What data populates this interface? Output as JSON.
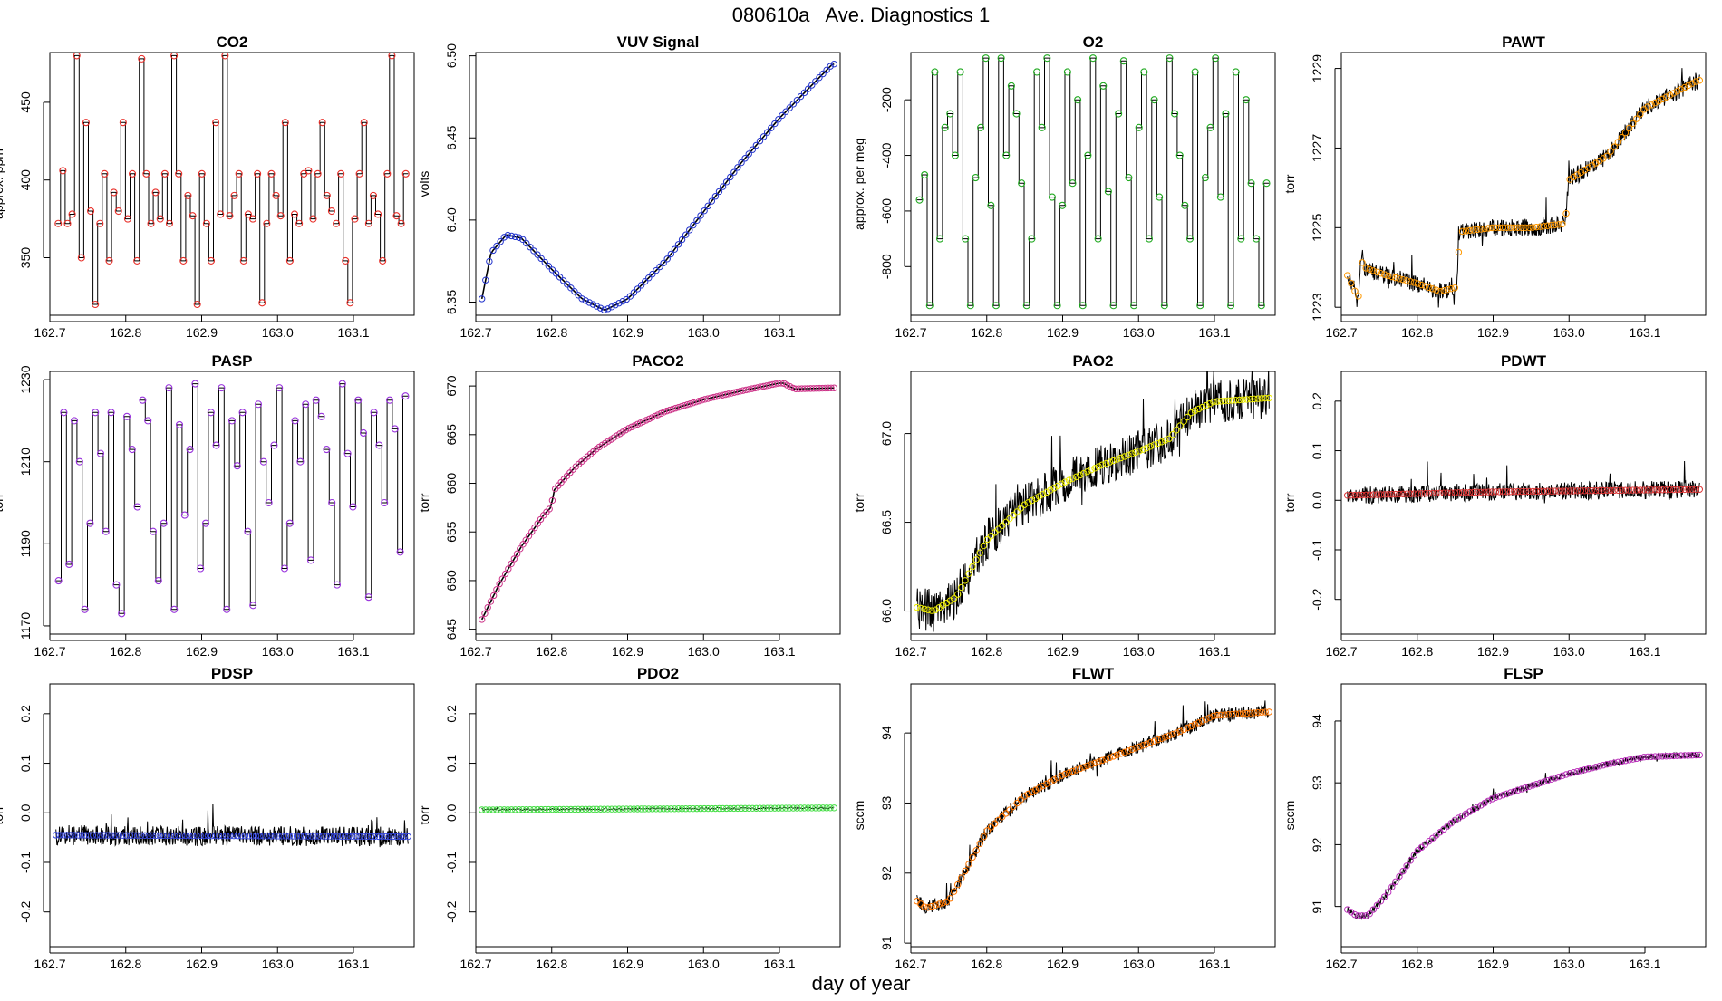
{
  "figure": {
    "title": "080610a   Ave. Diagnostics 1",
    "xlabel": "day of year"
  },
  "chart_data": [
    {
      "type": "line",
      "title": "CO2",
      "ylabel": "approx. ppm",
      "pattern": "steps",
      "marker_color": "#e8302a",
      "xlim": [
        162.7,
        163.18
      ],
      "ylim": [
        313,
        482
      ],
      "xticks": [
        "162.7",
        "162.8",
        "162.9",
        "163.0",
        "163.1"
      ],
      "yticks": [
        350,
        400,
        450
      ],
      "levels": [
        372,
        406,
        372,
        378,
        480,
        350,
        437,
        380,
        320,
        372,
        404,
        348,
        392,
        380,
        437,
        375,
        404,
        348,
        478,
        404,
        372,
        392,
        375,
        404,
        372,
        480,
        404,
        348,
        390,
        377,
        320,
        404,
        372,
        348,
        437,
        378,
        480,
        377,
        390,
        404,
        348,
        378,
        375,
        404,
        321,
        372,
        404,
        390,
        377,
        437,
        348,
        378,
        372,
        404,
        406,
        375,
        404,
        437,
        390,
        380,
        372,
        404,
        348,
        321,
        375,
        404,
        437,
        372,
        390,
        378,
        348,
        404,
        480,
        377,
        372,
        404
      ]
    },
    {
      "type": "line",
      "title": "VUV Signal",
      "ylabel": "volts",
      "pattern": "vuv",
      "marker_color": "#2233cc",
      "xlim": [
        162.7,
        163.18
      ],
      "ylim": [
        6.342,
        6.502
      ],
      "xticks": [
        "162.7",
        "162.8",
        "162.9",
        "163.0",
        "163.1"
      ],
      "yticks": [
        6.35,
        6.4,
        6.45,
        6.5
      ],
      "x": [
        162.708,
        162.72,
        162.74,
        162.76,
        162.8,
        162.84,
        162.87,
        162.9,
        162.95,
        163.0,
        163.05,
        163.1,
        163.17
      ],
      "y": [
        6.352,
        6.38,
        6.391,
        6.389,
        6.37,
        6.352,
        6.345,
        6.352,
        6.375,
        6.405,
        6.435,
        6.462,
        6.495
      ]
    },
    {
      "type": "line",
      "title": "O2",
      "ylabel": "approx. per meg",
      "pattern": "steps",
      "marker_color": "#22aa22",
      "xlim": [
        162.7,
        163.18
      ],
      "ylim": [
        -975,
        -30
      ],
      "xticks": [
        "162.7",
        "162.8",
        "162.9",
        "163.0",
        "163.1"
      ],
      "yticks": [
        -800,
        -600,
        -400,
        -200
      ],
      "levels": [
        -560,
        -470,
        -940,
        -100,
        -700,
        -300,
        -250,
        -400,
        -100,
        -700,
        -940,
        -480,
        -300,
        -50,
        -580,
        -940,
        -50,
        -400,
        -150,
        -250,
        -500,
        -940,
        -700,
        -100,
        -300,
        -50,
        -550,
        -940,
        -580,
        -100,
        -500,
        -200,
        -940,
        -400,
        -50,
        -700,
        -150,
        -530,
        -940,
        -250,
        -60,
        -480,
        -940,
        -300,
        -100,
        -700,
        -200,
        -550,
        -940,
        -50,
        -250,
        -400,
        -580,
        -700,
        -100,
        -940,
        -480,
        -300,
        -50,
        -550,
        -250,
        -940,
        -100,
        -700,
        -200,
        -500,
        -700,
        -940,
        -500
      ]
    },
    {
      "type": "line",
      "title": "PAWT",
      "ylabel": "torr",
      "pattern": "noisy",
      "marker_color": "#ff9900",
      "noise": 0.22,
      "xlim": [
        162.7,
        163.18
      ],
      "ylim": [
        1222.8,
        1229.4
      ],
      "xticks": [
        "162.7",
        "162.8",
        "162.9",
        "163.0",
        "163.1"
      ],
      "yticks": [
        1223,
        1225,
        1227,
        1229
      ],
      "x": [
        162.708,
        162.718,
        162.722,
        162.726,
        162.73,
        162.76,
        162.8,
        162.83,
        162.852,
        162.856,
        162.9,
        162.95,
        162.995,
        163.0,
        163.05,
        163.1,
        163.17
      ],
      "y": [
        1223.8,
        1223.4,
        1223.1,
        1224.2,
        1224.0,
        1223.8,
        1223.6,
        1223.4,
        1223.5,
        1224.9,
        1225.0,
        1225.0,
        1225.1,
        1226.2,
        1226.8,
        1228.0,
        1228.7
      ]
    },
    {
      "type": "line",
      "title": "PASP",
      "ylabel": "torr",
      "pattern": "steps",
      "marker_color": "#9933dd",
      "xlim": [
        162.7,
        163.18
      ],
      "ylim": [
        1168,
        1232
      ],
      "xticks": [
        "162.7",
        "162.8",
        "162.9",
        "163.0",
        "163.1"
      ],
      "yticks": [
        1170,
        1190,
        1210,
        1230
      ],
      "levels": [
        1181,
        1222,
        1185,
        1220,
        1210,
        1174,
        1195,
        1222,
        1212,
        1193,
        1222,
        1180,
        1173,
        1221,
        1213,
        1199,
        1225,
        1220,
        1193,
        1181,
        1195,
        1228,
        1174,
        1219,
        1197,
        1213,
        1229,
        1184,
        1195,
        1222,
        1214,
        1228,
        1174,
        1220,
        1209,
        1222,
        1193,
        1175,
        1224,
        1210,
        1200,
        1214,
        1228,
        1184,
        1195,
        1220,
        1210,
        1224,
        1186,
        1225,
        1221,
        1213,
        1200,
        1180,
        1229,
        1212,
        1199,
        1225,
        1217,
        1177,
        1222,
        1214,
        1200,
        1225,
        1218,
        1188,
        1226
      ]
    },
    {
      "type": "line",
      "title": "PACO2",
      "ylabel": "torr",
      "pattern": "paco2",
      "marker_color": "#cc3388",
      "xlim": [
        162.7,
        163.18
      ],
      "ylim": [
        644.5,
        671.5
      ],
      "xticks": [
        "162.7",
        "162.8",
        "162.9",
        "163.0",
        "163.1"
      ],
      "yticks": [
        645,
        650,
        655,
        660,
        665,
        670
      ],
      "x": [
        162.708,
        162.73,
        162.76,
        162.79,
        162.8,
        162.802,
        162.83,
        162.86,
        162.9,
        162.95,
        163.0,
        163.05,
        163.1,
        163.105,
        163.12,
        163.17
      ],
      "y": [
        646.0,
        649.5,
        653.5,
        656.8,
        657.6,
        659.2,
        661.6,
        663.6,
        665.6,
        667.4,
        668.6,
        669.5,
        670.3,
        670.3,
        669.7,
        669.8
      ]
    },
    {
      "type": "line",
      "title": "PAO2",
      "ylabel": "torr",
      "pattern": "noisy",
      "marker_color": "#eeee00",
      "noise": 0.12,
      "xlim": [
        162.7,
        163.18
      ],
      "ylim": [
        65.87,
        67.35
      ],
      "xticks": [
        "162.7",
        "162.8",
        "162.9",
        "163.0",
        "163.1"
      ],
      "yticks": [
        66.0,
        66.5,
        67.0
      ],
      "x": [
        162.708,
        162.73,
        162.76,
        162.8,
        162.85,
        162.9,
        162.95,
        163.0,
        163.04,
        163.07,
        163.1,
        163.17
      ],
      "y": [
        66.02,
        66.0,
        66.08,
        66.4,
        66.6,
        66.72,
        66.82,
        66.9,
        66.97,
        67.12,
        67.18,
        67.2
      ]
    },
    {
      "type": "line",
      "title": "PDWT",
      "ylabel": "torr",
      "pattern": "noisy",
      "marker_color": "#dd3333",
      "noise": 0.018,
      "xlim": [
        162.7,
        163.18
      ],
      "ylim": [
        -0.27,
        0.26
      ],
      "xticks": [
        "162.7",
        "162.8",
        "162.9",
        "163.0",
        "163.1"
      ],
      "yticks": [
        -0.2,
        -0.1,
        0.0,
        0.1,
        0.2
      ],
      "x": [
        162.708,
        162.9,
        163.17
      ],
      "y": [
        0.01,
        0.017,
        0.022
      ]
    },
    {
      "type": "line",
      "title": "PDSP",
      "ylabel": "torr",
      "pattern": "noisy",
      "marker_color": "#3344dd",
      "noise": 0.02,
      "xlim": [
        162.7,
        163.18
      ],
      "ylim": [
        -0.27,
        0.26
      ],
      "xticks": [
        "162.7",
        "162.8",
        "162.9",
        "163.0",
        "163.1"
      ],
      "yticks": [
        -0.2,
        -0.1,
        0.0,
        0.1,
        0.2
      ],
      "x": [
        162.708,
        163.17
      ],
      "y": [
        -0.045,
        -0.048
      ]
    },
    {
      "type": "line",
      "title": "PDO2",
      "ylabel": "torr",
      "pattern": "flat",
      "marker_color": "#44dd44",
      "noise": 0.002,
      "xlim": [
        162.7,
        163.18
      ],
      "ylim": [
        -0.27,
        0.26
      ],
      "xticks": [
        "162.7",
        "162.8",
        "162.9",
        "163.0",
        "163.1"
      ],
      "yticks": [
        -0.2,
        -0.1,
        0.0,
        0.1,
        0.2
      ],
      "x": [
        162.708,
        163.17
      ],
      "y": [
        0.006,
        0.01
      ]
    },
    {
      "type": "line",
      "title": "FLWT",
      "ylabel": "sccm",
      "pattern": "noisy",
      "marker_color": "#ff7700",
      "noise": 0.1,
      "xlim": [
        162.7,
        163.18
      ],
      "ylim": [
        90.95,
        94.7
      ],
      "xticks": [
        "162.7",
        "162.8",
        "162.9",
        "163.0",
        "163.1"
      ],
      "yticks": [
        91,
        92,
        93,
        94
      ],
      "x": [
        162.708,
        162.72,
        162.75,
        162.78,
        162.8,
        162.85,
        162.9,
        162.95,
        163.0,
        163.05,
        163.1,
        163.17
      ],
      "y": [
        91.6,
        91.5,
        91.6,
        92.2,
        92.6,
        93.1,
        93.4,
        93.6,
        93.8,
        94.0,
        94.25,
        94.3
      ]
    },
    {
      "type": "line",
      "title": "FLSP",
      "ylabel": "sccm",
      "pattern": "noisy",
      "marker_color": "#bb33bb",
      "noise": 0.05,
      "xlim": [
        162.7,
        163.18
      ],
      "ylim": [
        90.35,
        94.6
      ],
      "xticks": [
        "162.7",
        "162.8",
        "162.9",
        "163.0",
        "163.1"
      ],
      "yticks": [
        91,
        92,
        93,
        94
      ],
      "x": [
        162.708,
        162.72,
        162.735,
        162.76,
        162.8,
        162.85,
        162.9,
        162.95,
        163.0,
        163.05,
        163.1,
        163.17
      ],
      "y": [
        90.95,
        90.85,
        90.85,
        91.2,
        91.9,
        92.4,
        92.75,
        92.95,
        93.15,
        93.3,
        93.42,
        93.45
      ]
    }
  ]
}
